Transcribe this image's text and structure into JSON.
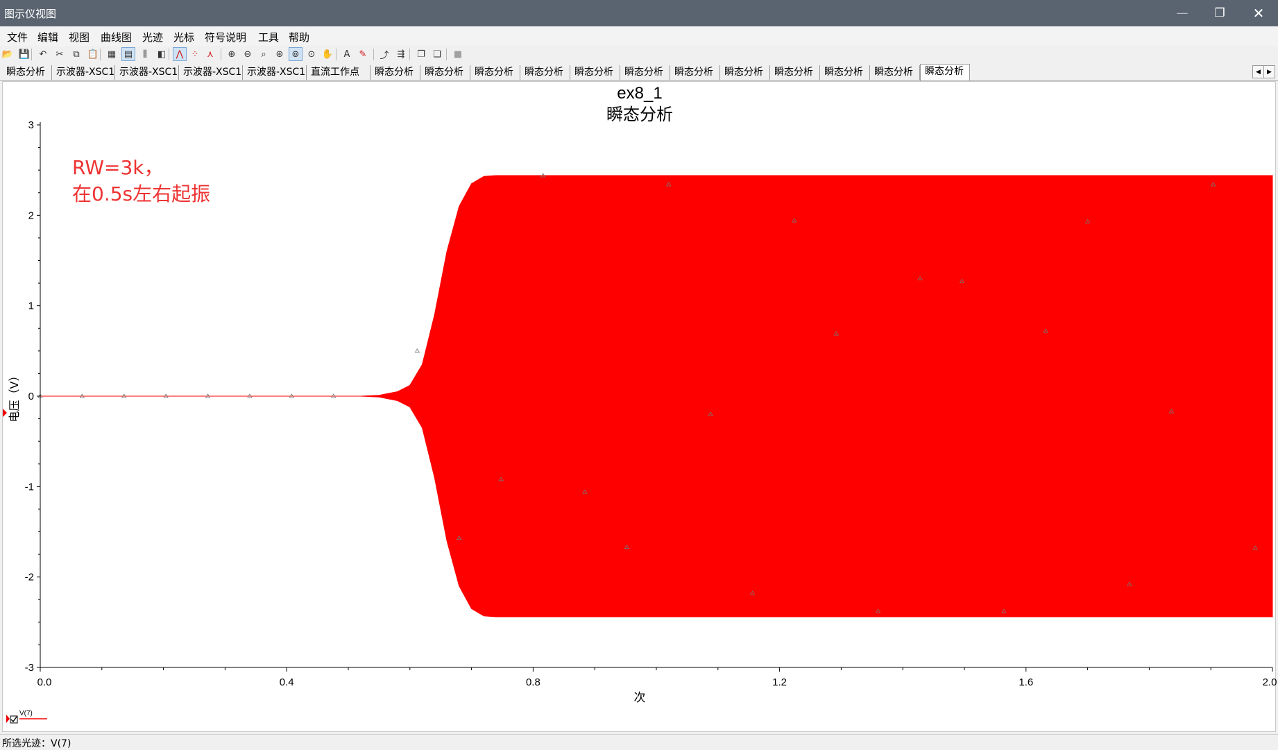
{
  "window": {
    "title": "图示仪视图",
    "min": "—",
    "max": "❐",
    "close": "✕"
  },
  "menu": [
    "文件",
    "编辑",
    "视图",
    "曲线图",
    "光迹",
    "光标",
    "符号说明",
    "工具",
    "帮助"
  ],
  "toolbar_icons": [
    "open-icon",
    "save-icon",
    "undo-icon",
    "cut-icon",
    "copy-icon",
    "paste-icon",
    "grid-icon",
    "legend-icon",
    "cursor-icon",
    "reverse-colors-icon",
    "line-mode-icon",
    "point-mode-icon",
    "line-point-mode-icon",
    "zoom-in-icon",
    "zoom-out-icon",
    "zoom-fit-icon",
    "zoom-x-icon",
    "zoom-y-icon",
    "zoom-area-icon",
    "pan-icon",
    "add-text-icon",
    "annotation-icon",
    "export-icon",
    "overlay-icon",
    "copy-graph-icon",
    "paste-graph-icon",
    "stop-icon"
  ],
  "tabs": [
    "瞬态分析",
    "示波器-XSC1",
    "示波器-XSC1",
    "示波器-XSC1",
    "示波器-XSC1",
    "直流工作点",
    "瞬态分析",
    "瞬态分析",
    "瞬态分析",
    "瞬态分析",
    "瞬态分析",
    "瞬态分析",
    "瞬态分析",
    "瞬态分析",
    "瞬态分析",
    "瞬态分析",
    "瞬态分析",
    "瞬态分析"
  ],
  "active_tab_index": 17,
  "tab_scroll": {
    "left": "◀",
    "right": "▶"
  },
  "chart_data": {
    "type": "line",
    "title": "ex8_1",
    "subtitle": "瞬态分析",
    "xlabel": "次",
    "ylabel": "电压（V）",
    "xlim": [
      0,
      2.0
    ],
    "ylim": [
      -3,
      3
    ],
    "x_ticks": [
      "0.0",
      "0.4",
      "0.8",
      "1.2",
      "1.6",
      "2.0"
    ],
    "y_ticks": [
      "3",
      "2",
      "1",
      "0",
      "-1",
      "-2",
      "-3"
    ],
    "annotation": [
      "RW=3k，",
      "在0.5s左右起振"
    ],
    "annotation_color": "#ee3333",
    "series": [
      {
        "name": "V(7)",
        "color": "#ff0000",
        "amplitude": 2.44,
        "envelope": [
          [
            0,
            0
          ],
          [
            0.52,
            0
          ],
          [
            0.55,
            0.01
          ],
          [
            0.58,
            0.05
          ],
          [
            0.6,
            0.12
          ],
          [
            0.62,
            0.35
          ],
          [
            0.64,
            0.9
          ],
          [
            0.66,
            1.6
          ],
          [
            0.68,
            2.1
          ],
          [
            0.7,
            2.35
          ],
          [
            0.72,
            2.43
          ],
          [
            0.74,
            2.44
          ],
          [
            2.0,
            2.44
          ]
        ],
        "markers": [
          [
            0,
            0
          ],
          [
            0.068,
            0
          ],
          [
            0.136,
            0
          ],
          [
            0.204,
            0
          ],
          [
            0.272,
            0
          ],
          [
            0.34,
            0
          ],
          [
            0.408,
            0
          ],
          [
            0.476,
            0
          ],
          [
            0.612,
            0.5
          ],
          [
            0.68,
            -1.57
          ],
          [
            0.748,
            -0.92
          ],
          [
            0.816,
            2.44
          ],
          [
            0.884,
            -1.06
          ],
          [
            0.952,
            -1.67
          ],
          [
            1.02,
            2.34
          ],
          [
            1.088,
            -0.2
          ],
          [
            1.156,
            -2.18
          ],
          [
            1.224,
            1.94
          ],
          [
            1.292,
            0.69
          ],
          [
            1.36,
            -2.38
          ],
          [
            1.428,
            1.3
          ],
          [
            1.496,
            1.27
          ],
          [
            1.564,
            -2.38
          ],
          [
            1.632,
            0.72
          ],
          [
            1.7,
            1.93
          ],
          [
            1.768,
            -2.08
          ],
          [
            1.836,
            -0.17
          ],
          [
            1.904,
            2.34
          ],
          [
            1.972,
            -1.68
          ]
        ]
      }
    ]
  },
  "legend": {
    "label": "V(7)"
  },
  "status": "所选光迹：V(7)"
}
